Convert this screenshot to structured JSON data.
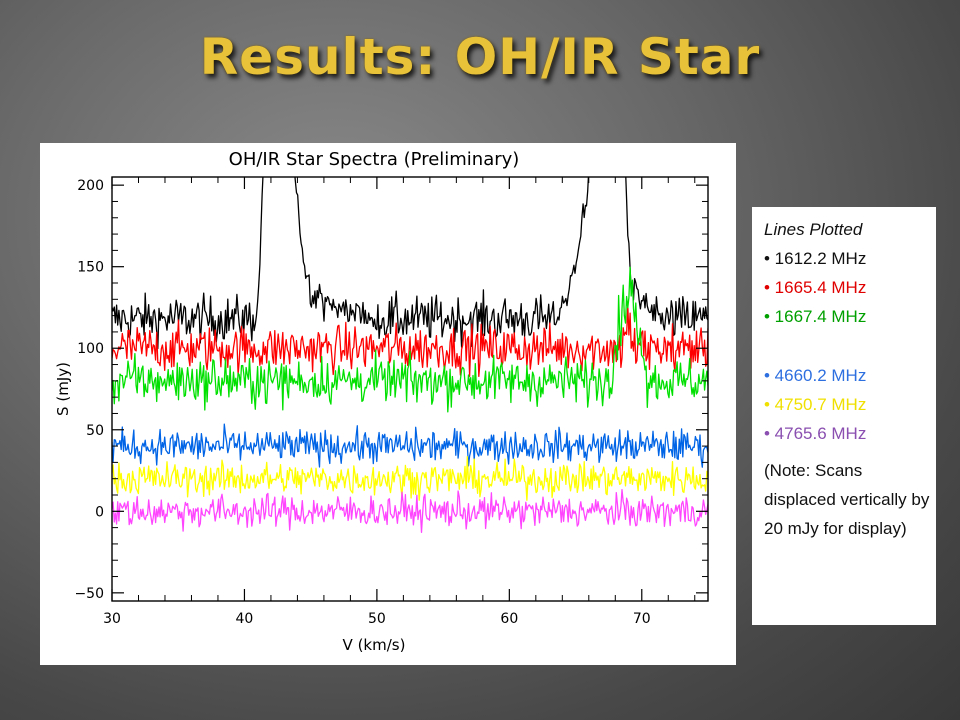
{
  "slide": {
    "title": "Results: OH/IR Star"
  },
  "legend": {
    "heading": "Lines Plotted",
    "items": [
      {
        "label": "• 1612.2 MHz",
        "color": "#111111"
      },
      {
        "label": "• 1665.4 MHz",
        "color": "#e00000"
      },
      {
        "label": "• 1667.4 MHz",
        "color": "#00a000"
      },
      {
        "label": "• 4660.2 MHz",
        "color": "#2e6fe0"
      },
      {
        "label": "• 4750.7 MHz",
        "color": "#f0e000"
      },
      {
        "label": "• 4765.6 MHz",
        "color": "#8a4fb0"
      }
    ],
    "note": "(Note: Scans displaced vertically by 20 mJy for display)"
  },
  "chart_data": {
    "type": "line",
    "title": "OH/IR Star Spectra (Preliminary)",
    "xlabel": "V (km/s)",
    "ylabel": "S (mJy)",
    "xlim": [
      30,
      75
    ],
    "ylim": [
      -55,
      205
    ],
    "xticks": [
      "30",
      "40",
      "50",
      "60",
      "70"
    ],
    "yticks": [
      "200",
      "150",
      "100",
      "50",
      "0",
      "−50"
    ],
    "grid": false,
    "series": [
      {
        "color": "#000000",
        "baseline": 118,
        "noise": 7,
        "features": [
          {
            "v0": 40.8,
            "v1": 41.4,
            "shape": "rise",
            "to": 205
          },
          {
            "v0": 41.4,
            "v1": 43.8,
            "shape": "flat",
            "to": 205
          },
          {
            "v0": 43.8,
            "v1": 45.5,
            "shape": "decay",
            "from": 205,
            "to": 132
          },
          {
            "v0": 45.5,
            "v1": 50.0,
            "shape": "decay",
            "from": 132,
            "to": 120
          },
          {
            "v0": 63.5,
            "v1": 66.0,
            "shape": "rise",
            "from": 120,
            "to": 205
          },
          {
            "v0": 66.0,
            "v1": 68.8,
            "shape": "flat",
            "to": 205
          },
          {
            "v0": 68.8,
            "v1": 69.4,
            "shape": "decay",
            "from": 205,
            "to": 135
          },
          {
            "v0": 69.4,
            "v1": 72.0,
            "shape": "decay",
            "from": 135,
            "to": 118
          }
        ]
      },
      {
        "color": "#ff0000",
        "baseline": 100,
        "noise": 7,
        "features": [
          {
            "v0": 68.5,
            "v1": 69.3,
            "shape": "spike",
            "to": 118
          }
        ]
      },
      {
        "color": "#00e000",
        "baseline": 80,
        "noise": 7,
        "features": [
          {
            "v0": 67.6,
            "v1": 70.4,
            "shape": "spike",
            "to": 142
          }
        ]
      },
      {
        "color": "#0064e6",
        "baseline": 40,
        "noise": 5,
        "features": []
      },
      {
        "color": "#ffff00",
        "baseline": 20,
        "noise": 5,
        "features": []
      },
      {
        "color": "#ff46ff",
        "baseline": 0,
        "noise": 5,
        "features": []
      }
    ]
  }
}
